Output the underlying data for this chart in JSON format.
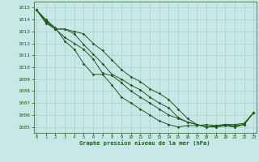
{
  "title": "",
  "xlabel": "Graphe pression niveau de la mer (hPa)",
  "bg_color": "#c8e8e8",
  "line_color": "#1a5c1a",
  "grid_color": "#a8d0d0",
  "ylim": [
    1004.5,
    1015.5
  ],
  "xlim": [
    -0.3,
    23.3
  ],
  "yticks": [
    1005,
    1006,
    1007,
    1008,
    1009,
    1010,
    1011,
    1012,
    1013,
    1014,
    1015
  ],
  "xticks": [
    0,
    1,
    2,
    3,
    4,
    5,
    6,
    7,
    8,
    9,
    10,
    11,
    12,
    13,
    14,
    15,
    16,
    17,
    18,
    19,
    20,
    21,
    22,
    23
  ],
  "series": [
    [
      1014.8,
      1014.0,
      1013.3,
      1012.2,
      1011.5,
      1010.3,
      1009.4,
      1009.4,
      1008.5,
      1007.5,
      1007.0,
      1006.5,
      1006.0,
      1005.5,
      1005.2,
      1005.0,
      1005.1,
      1005.1,
      1005.2,
      1005.1,
      1005.2,
      1005.2,
      1005.3,
      1006.2
    ],
    [
      1014.8,
      1013.9,
      1013.2,
      1012.5,
      1012.0,
      1011.5,
      1010.7,
      1009.5,
      1009.3,
      1008.7,
      1008.0,
      1007.5,
      1007.0,
      1006.5,
      1006.0,
      1005.7,
      1005.4,
      1005.2,
      1005.0,
      1005.1,
      1005.2,
      1005.1,
      1005.2,
      1006.2
    ],
    [
      1014.8,
      1013.8,
      1013.2,
      1013.2,
      1012.8,
      1011.9,
      1011.1,
      1010.3,
      1009.4,
      1009.0,
      1008.5,
      1008.1,
      1007.5,
      1007.0,
      1006.6,
      1005.8,
      1005.4,
      1005.2,
      1005.0,
      1005.0,
      1005.1,
      1005.0,
      1005.2,
      1006.2
    ],
    [
      1014.8,
      1013.7,
      1013.2,
      1013.2,
      1013.0,
      1012.8,
      1012.0,
      1011.4,
      1010.6,
      1009.8,
      1009.2,
      1008.8,
      1008.2,
      1007.8,
      1007.3,
      1006.5,
      1005.7,
      1005.2,
      1005.0,
      1005.0,
      1005.1,
      1005.0,
      1005.2,
      1006.2
    ]
  ]
}
